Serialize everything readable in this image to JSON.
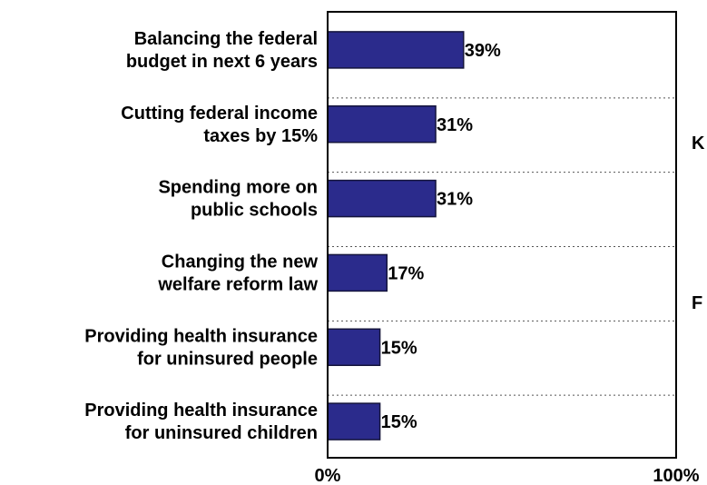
{
  "chart_data": {
    "type": "bar",
    "orientation": "horizontal",
    "categories": [
      [
        "Balancing the federal",
        "budget in next 6 years"
      ],
      [
        "Cutting federal income",
        "taxes by 15%"
      ],
      [
        "Spending more on",
        "public schools"
      ],
      [
        "Changing the new",
        "welfare reform law"
      ],
      [
        "Providing health insurance",
        "for uninsured people"
      ],
      [
        "Providing health insurance",
        "for uninsured children"
      ]
    ],
    "values": [
      39,
      31,
      31,
      17,
      15,
      15
    ],
    "value_labels": [
      "39%",
      "31%",
      "31%",
      "17%",
      "15%",
      "15%"
    ],
    "xlim": [
      0,
      100
    ],
    "x_tick_labels": [
      "0%",
      "100%"
    ],
    "bar_color": "#2b2b8c",
    "bar_outline_color": "#14143c",
    "gridlines": "dotted-horizontal-between-bars",
    "side_labels": [
      "K",
      "F"
    ]
  }
}
